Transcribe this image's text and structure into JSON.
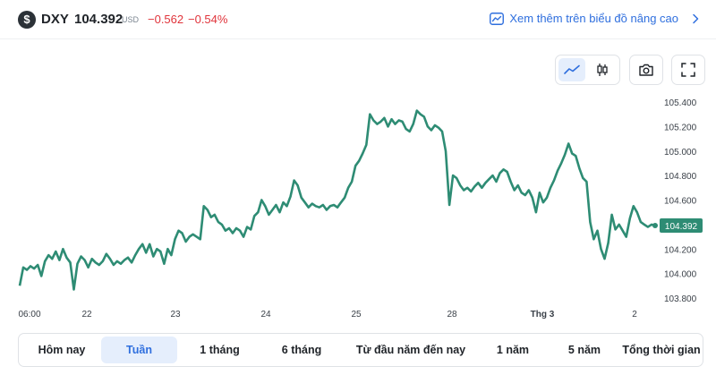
{
  "header": {
    "currency_symbol": "$",
    "symbol": "DXY",
    "price": "104.392",
    "unit": "USD",
    "change": "−0.562",
    "change_pct": "−0.54%",
    "advanced_link": "Xem thêm trên biểu đồ nâng cao"
  },
  "toolbar": {
    "buttons": [
      {
        "icon": "line-chart-icon",
        "active": true
      },
      {
        "icon": "candlestick-icon",
        "active": false
      },
      {
        "icon": "camera-icon",
        "active": false
      },
      {
        "icon": "fullscreen-icon",
        "active": false
      }
    ]
  },
  "colors": {
    "line": "#2e8c74",
    "down": "#e0343b",
    "accent": "#2f6fde",
    "price_label_bg": "#2e8c74"
  },
  "chart_data": {
    "type": "line",
    "series": [
      {
        "values": [
          103.9,
          104.05,
          104.03,
          104.06,
          104.04,
          104.07,
          103.98,
          104.1,
          104.15,
          104.12,
          104.18,
          104.11,
          104.2,
          104.13,
          104.09,
          103.87,
          104.08,
          104.14,
          104.11,
          104.05,
          104.12,
          104.09,
          104.07,
          104.1,
          104.16,
          104.12,
          104.07,
          104.1,
          104.08,
          104.11,
          104.13,
          104.09,
          104.15,
          104.2,
          104.24,
          104.17,
          104.24,
          104.14,
          104.2,
          104.18,
          104.08,
          104.2,
          104.15,
          104.28,
          104.35,
          104.33,
          104.26,
          104.3,
          104.32,
          104.3,
          104.28,
          104.55,
          104.52,
          104.46,
          104.48,
          104.42,
          104.4,
          104.35,
          104.37,
          104.33,
          104.37,
          104.35,
          104.3,
          104.38,
          104.36,
          104.47,
          104.5,
          104.6,
          104.55,
          104.48,
          104.52,
          104.56,
          104.5,
          104.58,
          104.55,
          104.63,
          104.76,
          104.72,
          104.62,
          104.58,
          104.54,
          104.57,
          104.55,
          104.54,
          104.56,
          104.52,
          104.55,
          104.56,
          104.54,
          104.58,
          104.62,
          104.7,
          104.75,
          104.88,
          104.92,
          104.98,
          105.05,
          105.3,
          105.25,
          105.22,
          105.24,
          105.27,
          105.2,
          105.26,
          105.22,
          105.25,
          105.24,
          105.18,
          105.16,
          105.22,
          105.33,
          105.3,
          105.28,
          105.2,
          105.17,
          105.21,
          105.19,
          105.16,
          105.0,
          104.56,
          104.8,
          104.78,
          104.72,
          104.68,
          104.7,
          104.67,
          104.71,
          104.74,
          104.7,
          104.74,
          104.77,
          104.8,
          104.75,
          104.82,
          104.85,
          104.83,
          104.75,
          104.68,
          104.72,
          104.66,
          104.64,
          104.68,
          104.62,
          104.5,
          104.66,
          104.58,
          104.62,
          104.7,
          104.76,
          104.84,
          104.9,
          104.97,
          105.06,
          104.98,
          104.96,
          104.86,
          104.78,
          104.75,
          104.42,
          104.28,
          104.35,
          104.2,
          104.12,
          104.25,
          104.48,
          104.36,
          104.4,
          104.35,
          104.3,
          104.45,
          104.55,
          104.5,
          104.42,
          104.4,
          104.38,
          104.4,
          104.392
        ]
      }
    ],
    "x_ticks": [
      "06:00",
      "22",
      "23",
      "24",
      "25",
      "28",
      "Thg 3",
      "2"
    ],
    "y_ticks": [
      "103.800",
      "104.000",
      "104.200",
      "104.400",
      "104.600",
      "104.800",
      "105.000",
      "105.200",
      "105.400"
    ],
    "ylim": [
      103.8,
      105.4
    ],
    "last_price_label": "104.392"
  },
  "ranges": [
    {
      "label": "Hôm nay",
      "active": false
    },
    {
      "label": "Tuần",
      "active": true
    },
    {
      "label": "1 tháng",
      "active": false
    },
    {
      "label": "6 tháng",
      "active": false
    },
    {
      "label": "Từ đầu năm đến nay",
      "active": false
    },
    {
      "label": "1 năm",
      "active": false
    },
    {
      "label": "5 năm",
      "active": false
    },
    {
      "label": "Tổng thời gian",
      "active": false
    }
  ]
}
